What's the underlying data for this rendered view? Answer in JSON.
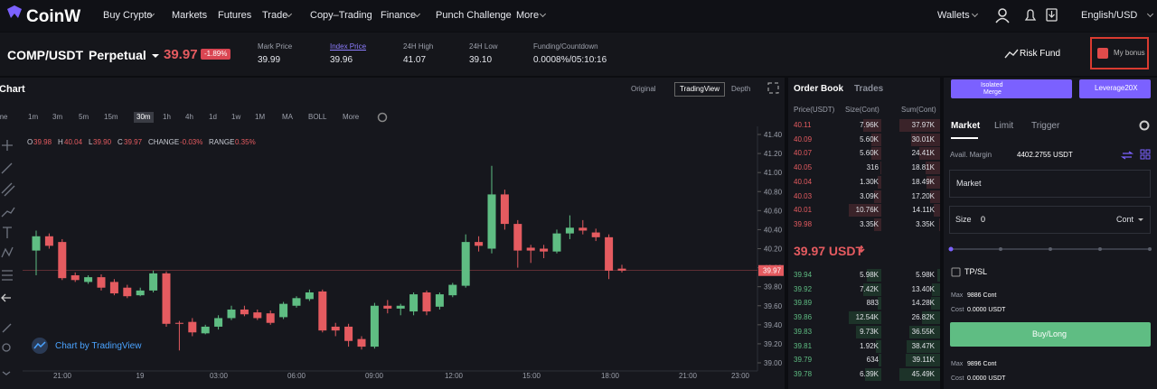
{
  "nav": {
    "logo": "CoinW",
    "items": [
      "Buy Crypto",
      "Markets",
      "Futures",
      "Trade",
      "Copy–Trading",
      "Finance",
      "Punch Challenge",
      "More"
    ],
    "wallets": "Wallets",
    "language": "English/USD"
  },
  "ticker": {
    "symbol": "COMP/USDT",
    "contract": "Perpetual",
    "price": "39.97",
    "change": "-1.89%",
    "stats": [
      {
        "label": "Mark Price",
        "value": "39.99"
      },
      {
        "label": "Index Price",
        "value": "39.96"
      },
      {
        "label": "24H High",
        "value": "41.07"
      },
      {
        "label": "24H Low",
        "value": "39.10"
      },
      {
        "label": "Funding/Countdown",
        "value": "0.0008%/05:10:16"
      }
    ],
    "risk_fund": "Risk Fund",
    "bonus": "My bonus"
  },
  "chart_data": {
    "type": "candlestick",
    "title": "Chart",
    "views": [
      "Original",
      "TradingView",
      "Depth"
    ],
    "intervals": [
      "Time",
      "1m",
      "3m",
      "5m",
      "15m",
      "30m",
      "1h",
      "4h",
      "1d",
      "1w",
      "1M",
      "MA",
      "BOLL",
      "More"
    ],
    "legend": [
      {
        "key": "O",
        "value": "39.98"
      },
      {
        "key": "H",
        "value": "40.04"
      },
      {
        "key": "L",
        "value": "39.90"
      },
      {
        "key": "C",
        "value": "39.97"
      },
      {
        "key": "CHANGE",
        "value": "-0.03%"
      },
      {
        "key": "RANGE",
        "value": "0.35%"
      }
    ],
    "attribution": "Chart by TradingView",
    "open": [
      40.18,
      40.33,
      40.27,
      39.92,
      39.85,
      39.9,
      39.85,
      39.79,
      39.71,
      39.76,
      39.94,
      39.42,
      39.43,
      39.31,
      39.38,
      39.47,
      39.56,
      39.53,
      39.52,
      39.48,
      39.6,
      39.67,
      39.75,
      39.38,
      39.38,
      39.25,
      39.17,
      39.6,
      39.57,
      39.54,
      39.74,
      39.59,
      39.71,
      39.81,
      40.27,
      40.2,
      40.77,
      40.46,
      40.21,
      40.2,
      40.17,
      40.36,
      40.42,
      40.37,
      40.32,
      39.99
    ],
    "high": [
      40.39,
      40.36,
      40.3,
      39.95,
      39.92,
      39.93,
      39.88,
      39.82,
      39.79,
      39.97,
      39.96,
      39.44,
      39.47,
      39.4,
      39.5,
      39.6,
      39.6,
      39.56,
      39.55,
      39.64,
      39.7,
      39.77,
      39.77,
      39.42,
      39.41,
      39.28,
      39.63,
      39.66,
      39.62,
      39.74,
      39.76,
      39.74,
      39.84,
      40.35,
      40.33,
      41.07,
      40.82,
      40.5,
      40.24,
      40.24,
      40.4,
      40.55,
      40.5,
      40.41,
      40.35,
      40.03
    ],
    "low": [
      39.92,
      40.2,
      39.87,
      39.85,
      39.83,
      39.76,
      39.71,
      39.68,
      39.7,
      39.74,
      39.38,
      39.13,
      39.28,
      39.3,
      39.35,
      39.45,
      39.49,
      39.45,
      39.4,
      39.46,
      39.58,
      39.65,
      39.32,
      39.28,
      39.17,
      39.14,
      39.15,
      39.52,
      39.5,
      39.5,
      39.5,
      39.56,
      39.69,
      39.79,
      40.17,
      40.15,
      40.4,
      40.0,
      40.05,
      40.1,
      40.15,
      40.3,
      40.35,
      40.28,
      39.88,
      39.95
    ],
    "close": [
      40.33,
      40.23,
      39.89,
      39.87,
      39.9,
      39.79,
      39.73,
      39.7,
      39.76,
      39.94,
      39.41,
      39.41,
      39.32,
      39.38,
      39.47,
      39.56,
      39.51,
      39.47,
      39.42,
      39.62,
      39.68,
      39.74,
      39.34,
      39.34,
      39.23,
      39.17,
      39.6,
      39.57,
      39.6,
      39.72,
      39.54,
      39.72,
      39.82,
      40.27,
      40.23,
      40.77,
      40.46,
      40.18,
      40.18,
      40.17,
      40.36,
      40.42,
      40.39,
      40.32,
      39.97,
      39.97
    ],
    "up_color": "#5fbd83",
    "down_color": "#e55b60",
    "ylim": [
      39.0,
      41.4
    ],
    "yticks": [
      {
        "value": 41.4,
        "label": "41.40"
      },
      {
        "value": 41.2,
        "label": "41.20"
      },
      {
        "value": 41.0,
        "label": "41.00"
      },
      {
        "value": 40.8,
        "label": "40.80"
      },
      {
        "value": 40.6,
        "label": "40.60"
      },
      {
        "value": 40.4,
        "label": "40.40"
      },
      {
        "value": 40.2,
        "label": "40.20"
      },
      {
        "value": 40.0,
        "label": "40.00"
      },
      {
        "value": 39.8,
        "label": "39.80"
      },
      {
        "value": 39.6,
        "label": "39.60"
      },
      {
        "value": 39.4,
        "label": "39.40"
      },
      {
        "value": 39.2,
        "label": "39.20"
      },
      {
        "value": 39.0,
        "label": "39.00"
      }
    ],
    "x_labels": [
      "21:00",
      "19",
      "03:00",
      "06:00",
      "09:00",
      "12:00",
      "15:00",
      "18:00",
      "21:00",
      "23:00"
    ],
    "last_price": {
      "value": 39.97,
      "label": "39.97"
    }
  },
  "order_book": {
    "tabs": [
      "Order Book",
      "Trades"
    ],
    "headers": [
      "Price(USDT)",
      "Size(Cont)",
      "Sum(Cont)"
    ],
    "asks": [
      [
        "40.11",
        "7.96K",
        "37.97K"
      ],
      [
        "40.09",
        "5.60K",
        "30.01K"
      ],
      [
        "40.07",
        "5.60K",
        "24.41K"
      ],
      [
        "40.05",
        "316",
        "18.81K"
      ],
      [
        "40.04",
        "1.30K",
        "18.49K"
      ],
      [
        "40.03",
        "3.09K",
        "17.20K"
      ],
      [
        "40.01",
        "10.76K",
        "14.11K"
      ],
      [
        "39.98",
        "3.35K",
        "3.35K"
      ]
    ],
    "last": "39.97 USDT",
    "bids": [
      [
        "39.94",
        "5.98K",
        "5.98K"
      ],
      [
        "39.92",
        "7.42K",
        "13.40K"
      ],
      [
        "39.89",
        "883",
        "14.28K"
      ],
      [
        "39.86",
        "12.54K",
        "26.82K"
      ],
      [
        "39.83",
        "9.73K",
        "36.55K"
      ],
      [
        "39.81",
        "1.92K",
        "38.47K"
      ],
      [
        "39.79",
        "634",
        "39.11K"
      ],
      [
        "39.78",
        "6.39K",
        "45.49K"
      ]
    ]
  },
  "trade": {
    "margin_mode": [
      "Isolated",
      "Merge"
    ],
    "leverage": "Leverage20X",
    "tabs": [
      "Market",
      "Limit",
      "Trigger"
    ],
    "avail_label": "Avail. Margin",
    "avail_value": "4402.2755 USDT",
    "order_type": "Market",
    "size_label": "Size",
    "size_value": "0",
    "unit": "Cont",
    "tpsl": "TP/SL",
    "long": {
      "max_label": "Max",
      "max": "9886 Cont",
      "cost_label": "Cost",
      "cost": "0.0000 USDT"
    },
    "buy": "Buy/Long",
    "short": {
      "max_label": "Max",
      "max": "9896 Cont",
      "cost_label": "Cost",
      "cost": "0.0000 USDT"
    }
  }
}
